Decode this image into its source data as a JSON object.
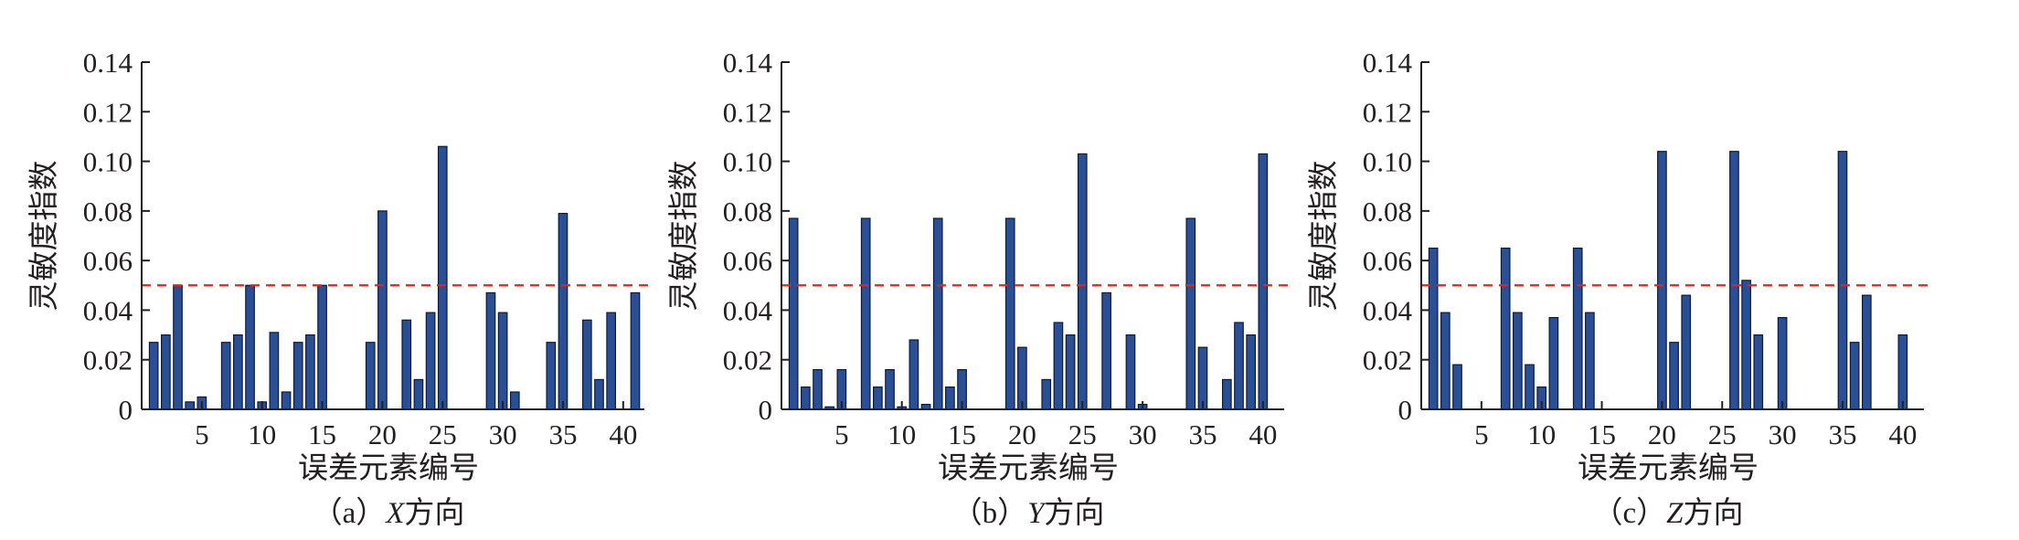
{
  "figure": {
    "subplots": [
      {
        "caption_prefix": "（a）",
        "caption_axis": "X",
        "caption_suffix": "方向"
      },
      {
        "caption_prefix": "（b）",
        "caption_axis": "Y",
        "caption_suffix": "方向"
      },
      {
        "caption_prefix": "（c）",
        "caption_axis": "Z",
        "caption_suffix": "方向"
      }
    ]
  },
  "colors": {
    "bar_fill": "#2a4f94",
    "bar_stroke": "#0b1a3c",
    "threshold_line": "#e8231c",
    "axis": "#231f20"
  },
  "chart_data": [
    {
      "type": "bar",
      "title": "",
      "xlabel": "误差元素编号",
      "ylabel": "灵敏度指数",
      "xlim": [
        0,
        41
      ],
      "ylim": [
        0,
        0.14
      ],
      "xticks": [
        5,
        10,
        15,
        20,
        25,
        30,
        35,
        40
      ],
      "yticks": [
        "0",
        "0.02",
        "0.04",
        "0.06",
        "0.08",
        "0.10",
        "0.12",
        "0.14"
      ],
      "threshold": 0.05,
      "threshold_style": "dashed",
      "grid": false,
      "x": [
        1,
        2,
        3,
        4,
        5,
        6,
        7,
        8,
        9,
        10,
        11,
        12,
        13,
        14,
        15,
        16,
        17,
        18,
        19,
        20,
        21,
        22,
        23,
        24,
        25,
        26,
        27,
        28,
        29,
        30,
        31,
        32,
        33,
        34,
        35,
        36,
        37,
        38,
        39,
        40,
        41
      ],
      "values": [
        0.027,
        0.03,
        0.05,
        0.003,
        0.005,
        0,
        0.027,
        0.03,
        0.05,
        0.003,
        0.031,
        0.007,
        0.027,
        0.03,
        0.05,
        0,
        0,
        0,
        0.027,
        0.08,
        0,
        0.036,
        0.012,
        0.039,
        0.106,
        0,
        0,
        0,
        0.047,
        0.039,
        0.007,
        0,
        0,
        0.027,
        0.079,
        0,
        0.036,
        0.012,
        0.039,
        0,
        0.047
      ]
    },
    {
      "type": "bar",
      "title": "",
      "xlabel": "误差元素编号",
      "ylabel": "灵敏度指数",
      "xlim": [
        0,
        41
      ],
      "ylim": [
        0,
        0.14
      ],
      "xticks": [
        5,
        10,
        15,
        20,
        25,
        30,
        35,
        40
      ],
      "yticks": [
        "0",
        "0.02",
        "0.04",
        "0.06",
        "0.08",
        "0.10",
        "0.12",
        "0.14"
      ],
      "threshold": 0.05,
      "threshold_style": "dashed",
      "grid": false,
      "x": [
        1,
        2,
        3,
        4,
        5,
        6,
        7,
        8,
        9,
        10,
        11,
        12,
        13,
        14,
        15,
        16,
        17,
        18,
        19,
        20,
        21,
        22,
        23,
        24,
        25,
        26,
        27,
        28,
        29,
        30,
        31,
        32,
        33,
        34,
        35,
        36,
        37,
        38,
        39,
        40,
        41
      ],
      "values": [
        0.077,
        0.009,
        0.016,
        0.001,
        0.016,
        0,
        0.077,
        0.009,
        0.016,
        0.001,
        0.028,
        0.002,
        0.077,
        0.009,
        0.016,
        0,
        0,
        0,
        0.077,
        0.025,
        0,
        0.012,
        0.035,
        0.03,
        0.103,
        0,
        0.047,
        0,
        0.03,
        0.002,
        0,
        0,
        0,
        0.077,
        0.025,
        0,
        0.012,
        0.035,
        0.03,
        0.103,
        0
      ]
    },
    {
      "type": "bar",
      "title": "",
      "xlabel": "误差元素编号",
      "ylabel": "灵敏度指数",
      "xlim": [
        0,
        41
      ],
      "ylim": [
        0,
        0.14
      ],
      "xticks": [
        5,
        10,
        15,
        20,
        25,
        30,
        35,
        40
      ],
      "yticks": [
        "0",
        "0.02",
        "0.04",
        "0.06",
        "0.08",
        "0.10",
        "0.12",
        "0.14"
      ],
      "threshold": 0.05,
      "threshold_style": "dashed",
      "grid": false,
      "x": [
        1,
        2,
        3,
        4,
        5,
        6,
        7,
        8,
        9,
        10,
        11,
        12,
        13,
        14,
        15,
        16,
        17,
        18,
        19,
        20,
        21,
        22,
        23,
        24,
        25,
        26,
        27,
        28,
        29,
        30,
        31,
        32,
        33,
        34,
        35,
        36,
        37,
        38,
        39,
        40,
        41
      ],
      "values": [
        0.065,
        0.039,
        0.018,
        0,
        0,
        0,
        0.065,
        0.039,
        0.018,
        0.009,
        0.037,
        0,
        0.065,
        0.039,
        0,
        0,
        0,
        0,
        0,
        0.104,
        0.027,
        0.046,
        0,
        0,
        0,
        0.104,
        0.052,
        0.03,
        0,
        0.037,
        0,
        0,
        0,
        0,
        0.104,
        0.027,
        0.046,
        0,
        0,
        0.03,
        0
      ]
    }
  ]
}
